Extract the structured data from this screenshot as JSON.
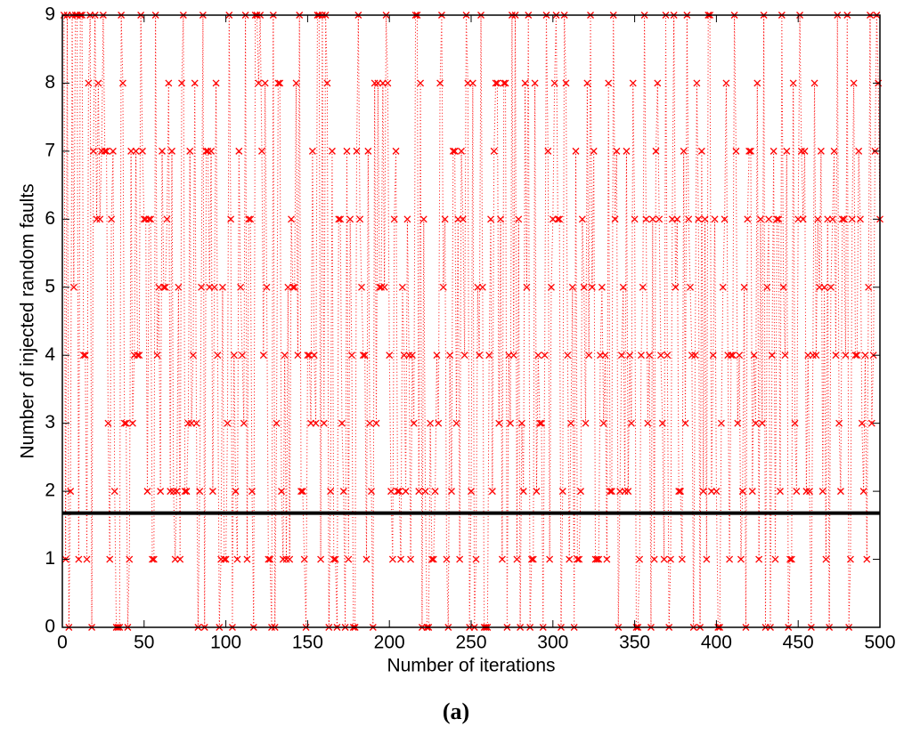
{
  "chart_data": {
    "type": "line",
    "subtitle": "(a)",
    "x_label": "Number of iterations",
    "y_label": "Number of injected random faults",
    "xlim": [
      0,
      500
    ],
    "xticks": [
      0,
      50,
      100,
      150,
      200,
      250,
      300,
      350,
      400,
      450,
      500
    ],
    "ylim": [
      0,
      9
    ],
    "yticks": [
      0,
      1,
      2,
      3,
      4,
      5,
      6,
      7,
      8,
      9
    ],
    "reference_line": {
      "value": 1.68,
      "color": "#000000"
    },
    "series": [
      {
        "color": "#ff0000",
        "x": [
          1,
          2,
          3,
          4,
          5,
          6,
          7,
          8,
          9,
          10,
          11,
          12,
          13,
          14,
          15,
          16,
          17,
          18,
          19,
          20,
          21,
          22,
          23,
          24,
          25,
          26,
          27,
          28,
          29,
          30,
          31,
          32,
          33,
          34,
          35,
          36,
          37,
          38,
          39,
          40,
          41,
          42,
          43,
          44,
          45,
          46,
          47,
          48,
          49,
          50,
          51,
          52,
          53,
          54,
          55,
          56,
          57,
          58,
          59,
          60,
          61,
          62,
          63,
          64,
          65,
          66,
          67,
          68,
          69,
          70,
          71,
          72,
          73,
          74,
          75,
          76,
          77,
          78,
          79,
          80,
          81,
          82,
          83,
          84,
          85,
          86,
          87,
          88,
          89,
          90,
          91,
          92,
          93,
          94,
          95,
          96,
          97,
          98,
          99,
          100,
          101,
          102,
          103,
          104,
          105,
          106,
          107,
          108,
          109,
          110,
          111,
          112,
          113,
          114,
          115,
          116,
          117,
          118,
          119,
          120,
          121,
          122,
          123,
          124,
          125,
          126,
          127,
          128,
          129,
          130,
          131,
          132,
          133,
          134,
          135,
          136,
          137,
          138,
          139,
          140,
          141,
          142,
          143,
          144,
          145,
          146,
          147,
          148,
          149,
          150,
          151,
          152,
          153,
          154,
          155,
          156,
          157,
          158,
          159,
          160,
          161,
          162,
          163,
          164,
          165,
          166,
          167,
          168,
          169,
          170,
          171,
          172,
          173,
          174,
          175,
          176,
          177,
          178,
          179,
          180,
          181,
          182,
          183,
          184,
          185,
          186,
          187,
          188,
          189,
          190,
          191,
          192,
          193,
          194,
          195,
          196,
          197,
          198,
          199,
          200,
          201,
          202,
          203,
          204,
          205,
          206,
          207,
          208,
          209,
          210,
          211,
          212,
          213,
          214,
          215,
          216,
          217,
          218,
          219,
          220,
          221,
          222,
          223,
          224,
          225,
          226,
          227,
          228,
          229,
          230,
          231,
          232,
          233,
          234,
          235,
          236,
          237,
          238,
          239,
          240,
          241,
          242,
          243,
          244,
          245,
          246,
          247,
          248,
          249,
          250,
          251,
          252,
          253,
          254,
          255,
          256,
          257,
          258,
          259,
          260,
          261,
          262,
          263,
          264,
          265,
          266,
          267,
          268,
          269,
          270,
          271,
          272,
          273,
          274,
          275,
          276,
          277,
          278,
          279,
          280,
          281,
          282,
          283,
          284,
          285,
          286,
          287,
          288,
          289,
          290,
          291,
          292,
          293,
          294,
          295,
          296,
          297,
          298,
          299,
          300,
          301,
          302,
          303,
          304,
          305,
          306,
          307,
          308,
          309,
          310,
          311,
          312,
          313,
          314,
          315,
          316,
          317,
          318,
          319,
          320,
          321,
          322,
          323,
          324,
          325,
          326,
          327,
          328,
          329,
          330,
          331,
          332,
          333,
          334,
          335,
          336,
          337,
          338,
          339,
          340,
          341,
          342,
          343,
          344,
          345,
          346,
          347,
          348,
          349,
          350,
          351,
          352,
          353,
          354,
          355,
          356,
          357,
          358,
          359,
          360,
          361,
          362,
          363,
          364,
          365,
          366,
          367,
          368,
          369,
          370,
          371,
          372,
          373,
          374,
          375,
          376,
          377,
          378,
          379,
          380,
          381,
          382,
          383,
          384,
          385,
          386,
          387,
          388,
          389,
          390,
          391,
          392,
          393,
          394,
          395,
          396,
          397,
          398,
          399,
          400,
          401,
          402,
          403,
          404,
          405,
          406,
          407,
          408,
          409,
          410,
          411,
          412,
          413,
          414,
          415,
          416,
          417,
          418,
          419,
          420,
          421,
          422,
          423,
          424,
          425,
          426,
          427,
          428,
          429,
          430,
          431,
          432,
          433,
          434,
          435,
          436,
          437,
          438,
          439,
          440,
          441,
          442,
          443,
          444,
          445,
          446,
          447,
          448,
          449,
          450,
          451,
          452,
          453,
          454,
          455,
          456,
          457,
          458,
          459,
          460,
          461,
          462,
          463,
          464,
          465,
          466,
          467,
          468,
          469,
          470,
          471,
          472,
          473,
          474,
          475,
          476,
          477,
          478,
          479,
          480,
          481,
          482,
          483,
          484,
          485,
          486,
          487,
          488,
          489,
          490,
          491,
          492,
          493,
          494,
          495,
          496,
          497,
          498,
          499,
          500
        ],
        "values": [
          9,
          1,
          9,
          0,
          2,
          9,
          5,
          9,
          9,
          1,
          9,
          9,
          4,
          4,
          1,
          8,
          9,
          0,
          7,
          9,
          6,
          8,
          6,
          7,
          9,
          7,
          7,
          3,
          1,
          6,
          7,
          2,
          0,
          0,
          0,
          9,
          8,
          3,
          3,
          0,
          1,
          7,
          3,
          4,
          7,
          4,
          4,
          9,
          7,
          6,
          6,
          2,
          6,
          6,
          1,
          1,
          9,
          4,
          5,
          2,
          7,
          5,
          5,
          6,
          8,
          2,
          7,
          2,
          1,
          2,
          5,
          1,
          8,
          9,
          2,
          2,
          3,
          7,
          3,
          4,
          8,
          3,
          0,
          2,
          5,
          9,
          0,
          7,
          7,
          5,
          7,
          2,
          5,
          8,
          4,
          0,
          1,
          5,
          1,
          1,
          3,
          9,
          6,
          0,
          4,
          2,
          1,
          7,
          5,
          4,
          3,
          9,
          1,
          6,
          6,
          2,
          0,
          9,
          9,
          8,
          9,
          7,
          4,
          8,
          5,
          1,
          1,
          0,
          9,
          0,
          3,
          8,
          8,
          2,
          1,
          4,
          1,
          5,
          1,
          6,
          5,
          5,
          8,
          4,
          9,
          2,
          2,
          1,
          0,
          4,
          4,
          3,
          7,
          4,
          3,
          9,
          9,
          1,
          9,
          3,
          9,
          8,
          0,
          2,
          7,
          1,
          1,
          0,
          6,
          6,
          3,
          2,
          0,
          7,
          1,
          6,
          4,
          0,
          0,
          7,
          9,
          6,
          5,
          4,
          4,
          1,
          7,
          3,
          2,
          0,
          8,
          3,
          8,
          5,
          5,
          8,
          5,
          9,
          8,
          4,
          2,
          1,
          6,
          7,
          2,
          2,
          1,
          5,
          4,
          2,
          6,
          4,
          1,
          4,
          3,
          9,
          9,
          2,
          8,
          0,
          6,
          2,
          0,
          0,
          3,
          1,
          1,
          2,
          4,
          3,
          8,
          9,
          5,
          6,
          1,
          0,
          4,
          2,
          7,
          7,
          3,
          6,
          1,
          7,
          6,
          4,
          9,
          8,
          0,
          2,
          8,
          0,
          1,
          5,
          4,
          9,
          5,
          0,
          0,
          0,
          4,
          6,
          2,
          7,
          8,
          8,
          3,
          6,
          1,
          8,
          8,
          0,
          4,
          3,
          9,
          4,
          9,
          1,
          6,
          0,
          3,
          2,
          8,
          5,
          9,
          0,
          1,
          1,
          8,
          2,
          4,
          3,
          3,
          0,
          4,
          9,
          7,
          1,
          5,
          6,
          8,
          9,
          6,
          6,
          0,
          2,
          9,
          8,
          4,
          1,
          3,
          5,
          0,
          7,
          1,
          1,
          2,
          6,
          5,
          3,
          8,
          4,
          9,
          5,
          7,
          1,
          1,
          1,
          4,
          5,
          3,
          4,
          1,
          8,
          2,
          2,
          9,
          6,
          7,
          0,
          2,
          4,
          5,
          2,
          7,
          2,
          4,
          3,
          8,
          6,
          0,
          0,
          1,
          4,
          5,
          9,
          6,
          3,
          4,
          0,
          6,
          1,
          7,
          8,
          6,
          4,
          3,
          1,
          9,
          4,
          0,
          1,
          6,
          9,
          5,
          6,
          2,
          2,
          1,
          7,
          3,
          9,
          6,
          5,
          4,
          0,
          4,
          8,
          6,
          0,
          7,
          2,
          6,
          1,
          9,
          9,
          2,
          4,
          6,
          2,
          0,
          0,
          3,
          5,
          6,
          8,
          4,
          1,
          4,
          4,
          9,
          7,
          3,
          4,
          1,
          2,
          5,
          0,
          6,
          7,
          7,
          2,
          4,
          3,
          8,
          1,
          6,
          3,
          9,
          0,
          5,
          6,
          0,
          4,
          7,
          1,
          6,
          6,
          2,
          9,
          5,
          4,
          7,
          0,
          1,
          1,
          8,
          3,
          2,
          6,
          9,
          7,
          6,
          7,
          2,
          4,
          2,
          0,
          4,
          8,
          4,
          6,
          5,
          7,
          2,
          5,
          1,
          6,
          0,
          5,
          6,
          7,
          4,
          9,
          3,
          2,
          6,
          6,
          4,
          9,
          0,
          1,
          6,
          8,
          4,
          4,
          7,
          6,
          3,
          2,
          4,
          1,
          5,
          9,
          3,
          4,
          7,
          9,
          8,
          6
        ]
      }
    ]
  }
}
